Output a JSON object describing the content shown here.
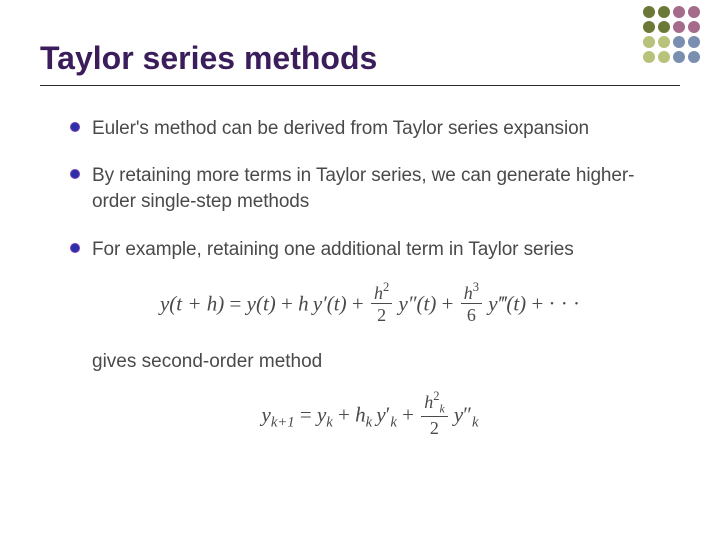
{
  "decoration": {
    "dot_colors": [
      "#6a7a36",
      "#6a7a36",
      "#a56b8a",
      "#a56b8a",
      "#6a7a36",
      "#6a7a36",
      "#a56b8a",
      "#a56b8a",
      "#b9c27a",
      "#b9c27a",
      "#7a8fb0",
      "#7a8fb0",
      "#b9c27a",
      "#b9c27a",
      "#7a8fb0",
      "#7a8fb0"
    ]
  },
  "title": "Taylor series methods",
  "bullets": [
    "Euler's method can be derived from Taylor series expansion",
    "By retaining more terms in Taylor series, we can generate higher-order single-step methods",
    "For example, retaining one additional term in Taylor series"
  ],
  "equation1": {
    "lhs": "y(t + h)",
    "term0": "y(t)",
    "term1_coeff": "h",
    "term1_func": "y′(t)",
    "term2_num": "h",
    "term2_exp": "2",
    "term2_den": "2",
    "term2_func": "y″(t)",
    "term3_num": "h",
    "term3_exp": "3",
    "term3_den": "6",
    "term3_func": "y‴(t)",
    "dots": "· · ·"
  },
  "continuation": "gives second-order method",
  "equation2": {
    "lhs_base": "y",
    "lhs_sub": "k+1",
    "t0_base": "y",
    "t0_sub": "k",
    "t1_coeff_base": "h",
    "t1_coeff_sub": "k",
    "t1_base": "y",
    "t1_prime": "′",
    "t1_sub": "k",
    "t2_num_base": "h",
    "t2_num_exp": "2",
    "t2_num_sub": "k",
    "t2_den": "2",
    "t2_base": "y",
    "t2_prime": "″",
    "t2_sub": "k"
  },
  "styles": {
    "title_color": "#3a1d5a",
    "title_fontsize": 32,
    "body_color": "#4a4a4a",
    "body_fontsize": 19,
    "bullet_fill": "#2b2fa8",
    "bullet_border": "#7a3fb0",
    "underline_color": "#2b2b2b",
    "background": "#ffffff",
    "equation_fontsize": 21
  }
}
